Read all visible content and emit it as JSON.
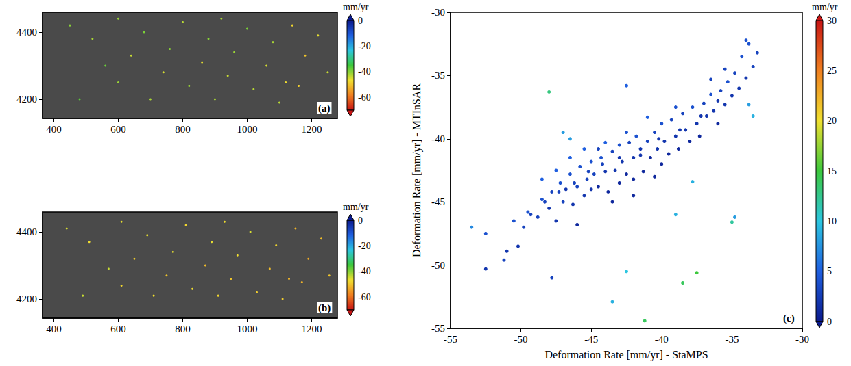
{
  "chart_data": [
    {
      "type": "scatter",
      "panel": "(a)",
      "grid": false,
      "xlim": [
        365,
        1280
      ],
      "xticks": [
        400,
        600,
        800,
        1000,
        1200
      ],
      "ylim": [
        4143,
        4459
      ],
      "yticks": [
        4200,
        4400
      ],
      "colorbar_label": "mm/yr",
      "colorbar_range": [
        -70,
        0
      ],
      "colorbar_ticks": [
        -60,
        -40,
        -20,
        0
      ],
      "points": [
        [
          450,
          4420,
          -40
        ],
        [
          520,
          4380,
          -42
        ],
        [
          560,
          4300,
          -38
        ],
        [
          600,
          4250,
          -41
        ],
        [
          640,
          4330,
          -44
        ],
        [
          680,
          4400,
          -39
        ],
        [
          700,
          4200,
          -42
        ],
        [
          740,
          4280,
          -45
        ],
        [
          760,
          4350,
          -40
        ],
        [
          800,
          4430,
          -43
        ],
        [
          820,
          4240,
          -41
        ],
        [
          860,
          4310,
          -46
        ],
        [
          880,
          4380,
          -40
        ],
        [
          900,
          4200,
          -42
        ],
        [
          940,
          4270,
          -44
        ],
        [
          960,
          4340,
          -41
        ],
        [
          1000,
          4410,
          -39
        ],
        [
          1020,
          4230,
          -43
        ],
        [
          1060,
          4300,
          -45
        ],
        [
          1080,
          4370,
          -42
        ],
        [
          1120,
          4250,
          -47
        ],
        [
          1140,
          4420,
          -48
        ],
        [
          1180,
          4330,
          -50
        ],
        [
          1220,
          4390,
          -46
        ],
        [
          1250,
          4280,
          -44
        ],
        [
          480,
          4200,
          -37
        ],
        [
          600,
          4440,
          -41
        ],
        [
          1100,
          4190,
          -43
        ],
        [
          1160,
          4240,
          -49
        ],
        [
          920,
          4440,
          -42
        ]
      ]
    },
    {
      "type": "scatter",
      "panel": "(b)",
      "grid": false,
      "xlim": [
        365,
        1280
      ],
      "xticks": [
        400,
        600,
        800,
        1000,
        1200
      ],
      "ylim": [
        4143,
        4459
      ],
      "yticks": [
        4200,
        4400
      ],
      "colorbar_label": "mm/yr",
      "colorbar_range": [
        -70,
        0
      ],
      "colorbar_ticks": [
        -60,
        -40,
        -20,
        0
      ],
      "points": [
        [
          440,
          4410,
          -45
        ],
        [
          510,
          4370,
          -47
        ],
        [
          570,
          4290,
          -44
        ],
        [
          610,
          4240,
          -48
        ],
        [
          650,
          4320,
          -49
        ],
        [
          690,
          4390,
          -46
        ],
        [
          710,
          4210,
          -47
        ],
        [
          750,
          4270,
          -50
        ],
        [
          770,
          4340,
          -46
        ],
        [
          810,
          4420,
          -48
        ],
        [
          830,
          4230,
          -47
        ],
        [
          870,
          4300,
          -51
        ],
        [
          890,
          4370,
          -46
        ],
        [
          910,
          4210,
          -48
        ],
        [
          950,
          4260,
          -50
        ],
        [
          970,
          4330,
          -47
        ],
        [
          1010,
          4400,
          -45
        ],
        [
          1030,
          4220,
          -49
        ],
        [
          1070,
          4290,
          -51
        ],
        [
          1090,
          4360,
          -48
        ],
        [
          1130,
          4260,
          -52
        ],
        [
          1150,
          4410,
          -52
        ],
        [
          1190,
          4320,
          -53
        ],
        [
          1230,
          4380,
          -51
        ],
        [
          1255,
          4270,
          -50
        ],
        [
          490,
          4210,
          -44
        ],
        [
          610,
          4430,
          -46
        ],
        [
          1110,
          4200,
          -49
        ],
        [
          1170,
          4250,
          -52
        ],
        [
          930,
          4430,
          -47
        ]
      ]
    },
    {
      "type": "scatter",
      "panel": "(c)",
      "grid": false,
      "x_label": "Deformation Rate [mm/yr] - StaMPS",
      "y_label": "Deformation Rate [mm/yr] - MTInSAR",
      "xlim": [
        -55,
        -30
      ],
      "xticks": [
        -55,
        -50,
        -45,
        -40,
        -35,
        -30
      ],
      "ylim": [
        -55,
        -30
      ],
      "yticks": [
        -55,
        -50,
        -45,
        -40,
        -35,
        -30
      ],
      "colorbar_label": "mm/yr",
      "colorbar_range": [
        0,
        30
      ],
      "colorbar_ticks": [
        0,
        5,
        10,
        15,
        20,
        25,
        30
      ],
      "points": [
        [
          -52.5,
          -50.3,
          2
        ],
        [
          -52.5,
          -47.5,
          4
        ],
        [
          -51.2,
          -49.6,
          3
        ],
        [
          -51,
          -48.9,
          2
        ],
        [
          -50.5,
          -46.5,
          4
        ],
        [
          -49.8,
          -47,
          3
        ],
        [
          -49.5,
          -45.8,
          4
        ],
        [
          -48.8,
          -46.2,
          3
        ],
        [
          -48.5,
          -44.8,
          4
        ],
        [
          -48,
          -45.5,
          2
        ],
        [
          -47.8,
          -44.2,
          3
        ],
        [
          -47.5,
          -46.5,
          2
        ],
        [
          -47.2,
          -43.5,
          4
        ],
        [
          -47,
          -45,
          3
        ],
        [
          -46.8,
          -44,
          2
        ],
        [
          -46.5,
          -42.8,
          4
        ],
        [
          -46.3,
          -45.2,
          2
        ],
        [
          -46,
          -43.8,
          3
        ],
        [
          -45.8,
          -42.2,
          4
        ],
        [
          -45.5,
          -44.5,
          2
        ],
        [
          -45.3,
          -43.2,
          3
        ],
        [
          -45,
          -41.8,
          4
        ],
        [
          -45,
          -44,
          2
        ],
        [
          -44.8,
          -42.8,
          3
        ],
        [
          -44.5,
          -43.8,
          1
        ],
        [
          -44.3,
          -41.5,
          4
        ],
        [
          -44,
          -42.6,
          2
        ],
        [
          -43.8,
          -44.2,
          1
        ],
        [
          -43.5,
          -41,
          3
        ],
        [
          -43.3,
          -42.5,
          2
        ],
        [
          -43,
          -43.5,
          1
        ],
        [
          -43,
          -40.5,
          4
        ],
        [
          -42.8,
          -41.8,
          2
        ],
        [
          -42.5,
          -42.8,
          1
        ],
        [
          -42.3,
          -40.3,
          3
        ],
        [
          -42,
          -41.5,
          2
        ],
        [
          -42,
          -43.2,
          1
        ],
        [
          -41.8,
          -39.8,
          4
        ],
        [
          -41.5,
          -41.3,
          2
        ],
        [
          -41.3,
          -42.6,
          1
        ],
        [
          -41,
          -40.2,
          3
        ],
        [
          -40.8,
          -41.5,
          1
        ],
        [
          -40.5,
          -39.5,
          3
        ],
        [
          -40.3,
          -40.8,
          2
        ],
        [
          -40,
          -42,
          1
        ],
        [
          -40,
          -38.8,
          4
        ],
        [
          -39.8,
          -40.2,
          2
        ],
        [
          -39.5,
          -41.2,
          1
        ],
        [
          -39.3,
          -38.5,
          3
        ],
        [
          -39,
          -39.8,
          2
        ],
        [
          -38.8,
          -40.8,
          1
        ],
        [
          -38.5,
          -38,
          3
        ],
        [
          -38.3,
          -39.3,
          2
        ],
        [
          -38,
          -40.2,
          1
        ],
        [
          -37.8,
          -37.5,
          4
        ],
        [
          -37.5,
          -38.8,
          2
        ],
        [
          -37.3,
          -39.8,
          1
        ],
        [
          -37,
          -37.2,
          3
        ],
        [
          -36.8,
          -38.2,
          2
        ],
        [
          -36.5,
          -36.5,
          4
        ],
        [
          -36.3,
          -37.8,
          2
        ],
        [
          -36,
          -38.8,
          1
        ],
        [
          -35.8,
          -36.2,
          3
        ],
        [
          -35.5,
          -37.3,
          2
        ],
        [
          -35.3,
          -35.5,
          4
        ],
        [
          -35,
          -36.6,
          2
        ],
        [
          -34.8,
          -34.8,
          3
        ],
        [
          -34.5,
          -36,
          2
        ],
        [
          -34.3,
          -33.5,
          4
        ],
        [
          -34,
          -35.2,
          2
        ],
        [
          -33.8,
          -32.5,
          4
        ],
        [
          -33.5,
          -34.3,
          3
        ],
        [
          -33.2,
          -33.2,
          3
        ],
        [
          -34,
          -32.2,
          4
        ],
        [
          -35.5,
          -34.5,
          3
        ],
        [
          -36.5,
          -35.3,
          3
        ],
        [
          -44,
          -40.3,
          5
        ],
        [
          -45.5,
          -40.8,
          5
        ],
        [
          -46.5,
          -41.5,
          5
        ],
        [
          -47.5,
          -42.5,
          5
        ],
        [
          -48.5,
          -43.2,
          5
        ],
        [
          -41,
          -38.3,
          5
        ],
        [
          -39,
          -37.5,
          4
        ],
        [
          -43.5,
          -45,
          1
        ],
        [
          -42,
          -44.5,
          1
        ],
        [
          -40.5,
          -43,
          1
        ],
        [
          -46,
          -46.8,
          1
        ],
        [
          -44.5,
          -40.8,
          3
        ],
        [
          -42.5,
          -39.5,
          4
        ],
        [
          -43,
          -41.5,
          2
        ],
        [
          -41.5,
          -40.8,
          2
        ],
        [
          -40.2,
          -40,
          2
        ],
        [
          -38.7,
          -39.3,
          2
        ],
        [
          -37.2,
          -38.2,
          2
        ],
        [
          -36,
          -37,
          2
        ],
        [
          -44.2,
          -42,
          3
        ],
        [
          -45.2,
          -42.6,
          3
        ],
        [
          -46.2,
          -43.5,
          3
        ],
        [
          -47.3,
          -44.2,
          3
        ],
        [
          -48.3,
          -45,
          3
        ],
        [
          -49.3,
          -46,
          3
        ],
        [
          -50.2,
          -48.5,
          2
        ],
        [
          -48,
          -36.3,
          13
        ],
        [
          -42.5,
          -35.8,
          5
        ],
        [
          -47,
          -39.5,
          8
        ],
        [
          -46.5,
          -40,
          8
        ],
        [
          -53.5,
          -47,
          7
        ],
        [
          -47.8,
          -51,
          3
        ],
        [
          -43.5,
          -52.9,
          9
        ],
        [
          -41.2,
          -54.4,
          14
        ],
        [
          -42.5,
          -50.5,
          10
        ],
        [
          -38.5,
          -51.4,
          14
        ],
        [
          -37.5,
          -50.6,
          15
        ],
        [
          -39,
          -46,
          9
        ],
        [
          -35,
          -46.6,
          12
        ],
        [
          -34.8,
          -46.2,
          8
        ],
        [
          -37.8,
          -43.4,
          9
        ],
        [
          -33.5,
          -38.2,
          9
        ],
        [
          -33.8,
          -37.3,
          8
        ]
      ]
    }
  ]
}
